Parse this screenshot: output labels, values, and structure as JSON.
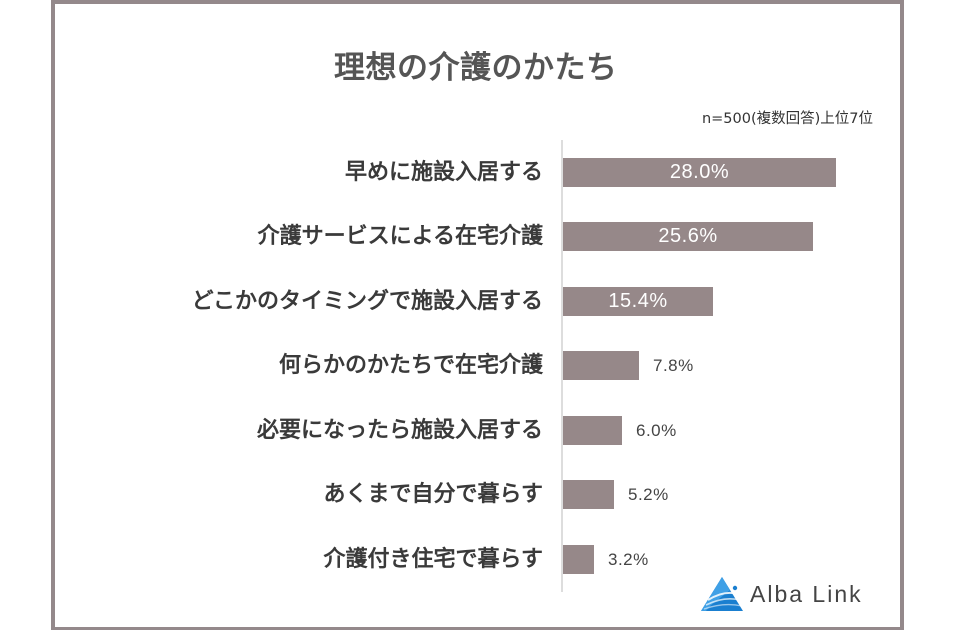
{
  "chart_data": {
    "type": "bar",
    "orientation": "horizontal",
    "title": "理想の介護のかたち",
    "subtitle": "n=500(複数回答)上位7位",
    "xlabel": "",
    "ylabel": "",
    "unit": "%",
    "grid": false,
    "legend": null,
    "bar_color": "#968889",
    "categories": [
      "早めに施設入居する",
      "介護サービスによる在宅介護",
      "どこかのタイミングで施設入居する",
      "何らかのかたちで在宅介護",
      "必要になったら施設入居する",
      "あくまで自分で暮らす",
      "介護付き住宅で暮らす"
    ],
    "values": [
      28.0,
      25.6,
      15.4,
      7.8,
      6.0,
      5.2,
      3.2
    ],
    "data_labels": [
      "28.0%",
      "25.6%",
      "15.4%",
      "7.8%",
      "6.0%",
      "5.2%",
      "3.2%"
    ]
  },
  "chart": {
    "title": "理想の介護のかたち",
    "note": "n=500(複数回答)上位7位",
    "rows": [
      {
        "label": "早めに施設入居する",
        "value": 28.0,
        "display": "28.0%"
      },
      {
        "label": "介護サービスによる在宅介護",
        "value": 25.6,
        "display": "25.6%"
      },
      {
        "label": "どこかのタイミングで施設入居する",
        "value": 15.4,
        "display": "15.4%"
      },
      {
        "label": "何らかのかたちで在宅介護",
        "value": 7.8,
        "display": "7.8%"
      },
      {
        "label": "必要になったら施設入居する",
        "value": 6.0,
        "display": "6.0%"
      },
      {
        "label": "あくまで自分で暮らす",
        "value": 5.2,
        "display": "5.2%"
      },
      {
        "label": "介護付き住宅で暮らす",
        "value": 3.2,
        "display": "3.2%"
      }
    ]
  },
  "logo": {
    "text": "Alba Link",
    "icon": "alba-link-triangle-icon",
    "colors": {
      "primary": "#1a7fd0",
      "light": "#7cc0ef"
    }
  },
  "colors": {
    "frame": "#94898b",
    "bar": "#968889",
    "title": "#555555",
    "label": "#3a3a3a"
  }
}
